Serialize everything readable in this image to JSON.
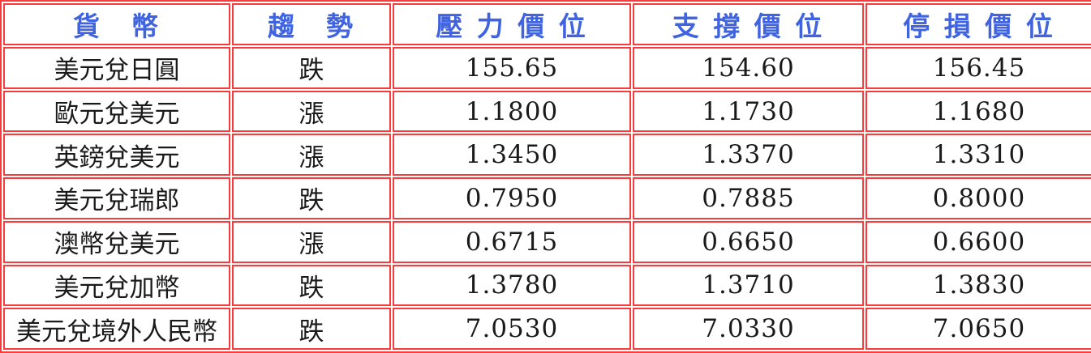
{
  "colors": {
    "border_red": "#f93b3b",
    "header_blue": "#4063e0",
    "body_black": "#1a1a1a",
    "background": "#ffffff"
  },
  "table": {
    "columns": [
      {
        "key": "currency",
        "label": "貨　幣"
      },
      {
        "key": "trend",
        "label": "趨　勢"
      },
      {
        "key": "resistance",
        "label": "壓 力 價 位"
      },
      {
        "key": "support",
        "label": "支 撐 價 位"
      },
      {
        "key": "stop_loss",
        "label": "停 損 價 位"
      }
    ],
    "rows": [
      {
        "currency": "美元兌日圓",
        "trend": "跌",
        "resistance": "155.65",
        "support": "154.60",
        "stop_loss": "156.45"
      },
      {
        "currency": "歐元兌美元",
        "trend": "漲",
        "resistance": "1.1800",
        "support": "1.1730",
        "stop_loss": "1.1680"
      },
      {
        "currency": "英鎊兌美元",
        "trend": "漲",
        "resistance": "1.3450",
        "support": "1.3370",
        "stop_loss": "1.3310"
      },
      {
        "currency": "美元兌瑞郎",
        "trend": "跌",
        "resistance": "0.7950",
        "support": "0.7885",
        "stop_loss": "0.8000"
      },
      {
        "currency": "澳幣兌美元",
        "trend": "漲",
        "resistance": "0.6715",
        "support": "0.6650",
        "stop_loss": "0.6600"
      },
      {
        "currency": "美元兌加幣",
        "trend": "跌",
        "resistance": "1.3780",
        "support": "1.3710",
        "stop_loss": "1.3830"
      },
      {
        "currency": "美元兌境外人民幣",
        "trend": "跌",
        "resistance": "7.0530",
        "support": "7.0330",
        "stop_loss": "7.0650"
      }
    ]
  }
}
